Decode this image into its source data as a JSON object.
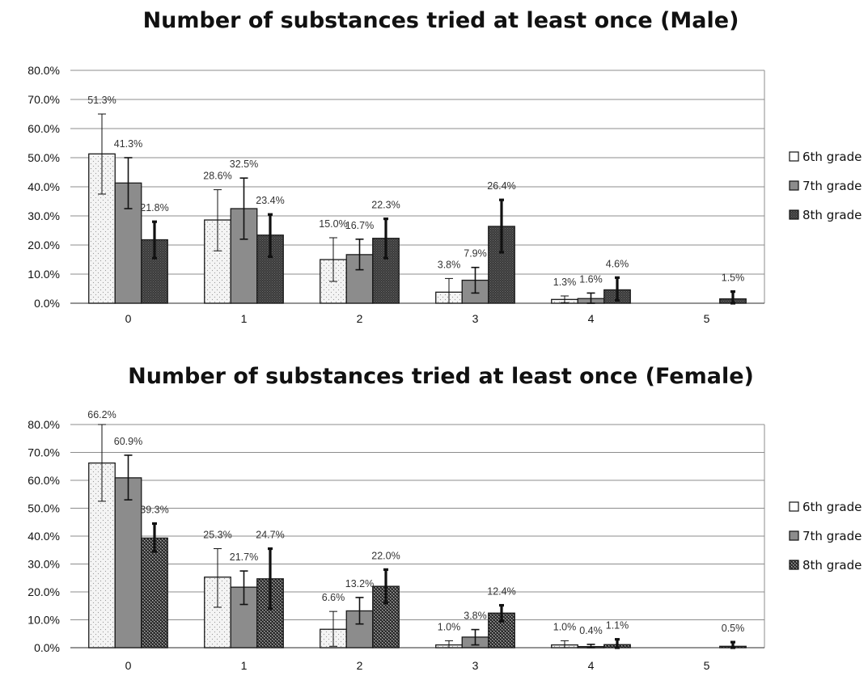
{
  "chart_data": [
    {
      "type": "bar",
      "title": "Number of substances tried at least once (Male)",
      "categories": [
        "0",
        "1",
        "2",
        "3",
        "4",
        "5"
      ],
      "y_tick_labels": [
        "0.0%",
        "10.0%",
        "20.0%",
        "30.0%",
        "40.0%",
        "50.0%",
        "60.0%",
        "70.0%",
        "80.0%"
      ],
      "ylim": [
        0,
        80
      ],
      "y_unit": "%",
      "grid": true,
      "legend_position": "right",
      "series": [
        {
          "name": "6th grade",
          "values": [
            51.3,
            28.6,
            15.0,
            3.8,
            1.3,
            null
          ],
          "labels": [
            "51.3%",
            "28.6%",
            "15.0%",
            "3.8%",
            "1.3%",
            ""
          ],
          "error_low": [
            37.5,
            18.0,
            7.5,
            0.0,
            0.2,
            null
          ],
          "error_high": [
            65.0,
            39.0,
            22.5,
            8.5,
            2.5,
            null
          ]
        },
        {
          "name": "7th grade",
          "values": [
            41.3,
            32.5,
            16.7,
            7.9,
            1.6,
            null
          ],
          "labels": [
            "41.3%",
            "32.5%",
            "16.7%",
            "7.9%",
            "1.6%",
            ""
          ],
          "error_low": [
            32.5,
            22.0,
            11.5,
            3.5,
            0.0,
            null
          ],
          "error_high": [
            50.0,
            43.0,
            22.0,
            12.3,
            3.5,
            null
          ]
        },
        {
          "name": "8th grade",
          "values": [
            21.8,
            23.4,
            22.3,
            26.4,
            4.6,
            1.5
          ],
          "labels": [
            "21.8%",
            "23.4%",
            "22.3%",
            "26.4%",
            "4.6%",
            "1.5%"
          ],
          "error_low": [
            15.5,
            16.0,
            15.5,
            17.5,
            1.0,
            0.0
          ],
          "error_high": [
            28.0,
            30.5,
            29.0,
            35.5,
            8.8,
            4.0
          ]
        }
      ]
    },
    {
      "type": "bar",
      "title": "Number of substances tried at least once (Female)",
      "categories": [
        "0",
        "1",
        "2",
        "3",
        "4",
        "5"
      ],
      "y_tick_labels": [
        "0.0%",
        "10.0%",
        "20.0%",
        "30.0%",
        "40.0%",
        "50.0%",
        "60.0%",
        "70.0%",
        "80.0%"
      ],
      "ylim": [
        0,
        80
      ],
      "y_unit": "%",
      "grid": true,
      "legend_position": "right",
      "series": [
        {
          "name": "6th grade",
          "values": [
            66.2,
            25.3,
            6.6,
            1.0,
            1.0,
            null
          ],
          "labels": [
            "66.2%",
            "25.3%",
            "6.6%",
            "1.0%",
            "1.0%",
            ""
          ],
          "error_low": [
            52.5,
            14.5,
            0.5,
            0.0,
            0.0,
            null
          ],
          "error_high": [
            80.0,
            35.5,
            13.0,
            2.5,
            2.5,
            null
          ]
        },
        {
          "name": "7th grade",
          "values": [
            60.9,
            21.7,
            13.2,
            3.8,
            0.4,
            null
          ],
          "labels": [
            "60.9%",
            "21.7%",
            "13.2%",
            "3.8%",
            "0.4%",
            ""
          ],
          "error_low": [
            53.0,
            15.5,
            8.5,
            1.0,
            0.0,
            null
          ],
          "error_high": [
            69.0,
            27.5,
            18.0,
            6.5,
            1.2,
            null
          ]
        },
        {
          "name": "8th grade",
          "values": [
            39.3,
            24.7,
            22.0,
            12.4,
            1.1,
            0.5
          ],
          "labels": [
            "39.3%",
            "24.7%",
            "22.0%",
            "12.4%",
            "1.1%",
            "0.5%"
          ],
          "error_low": [
            34.5,
            14.0,
            16.0,
            9.5,
            0.0,
            0.0
          ],
          "error_high": [
            44.5,
            35.5,
            28.0,
            15.2,
            3.0,
            2.0
          ]
        }
      ]
    }
  ],
  "style": {
    "bar_outline": "#1a1a1a",
    "grid_color": "#8c8c8c",
    "series_fills": [
      "#f3f3f3",
      "#8c8c8c",
      "#454545"
    ]
  }
}
